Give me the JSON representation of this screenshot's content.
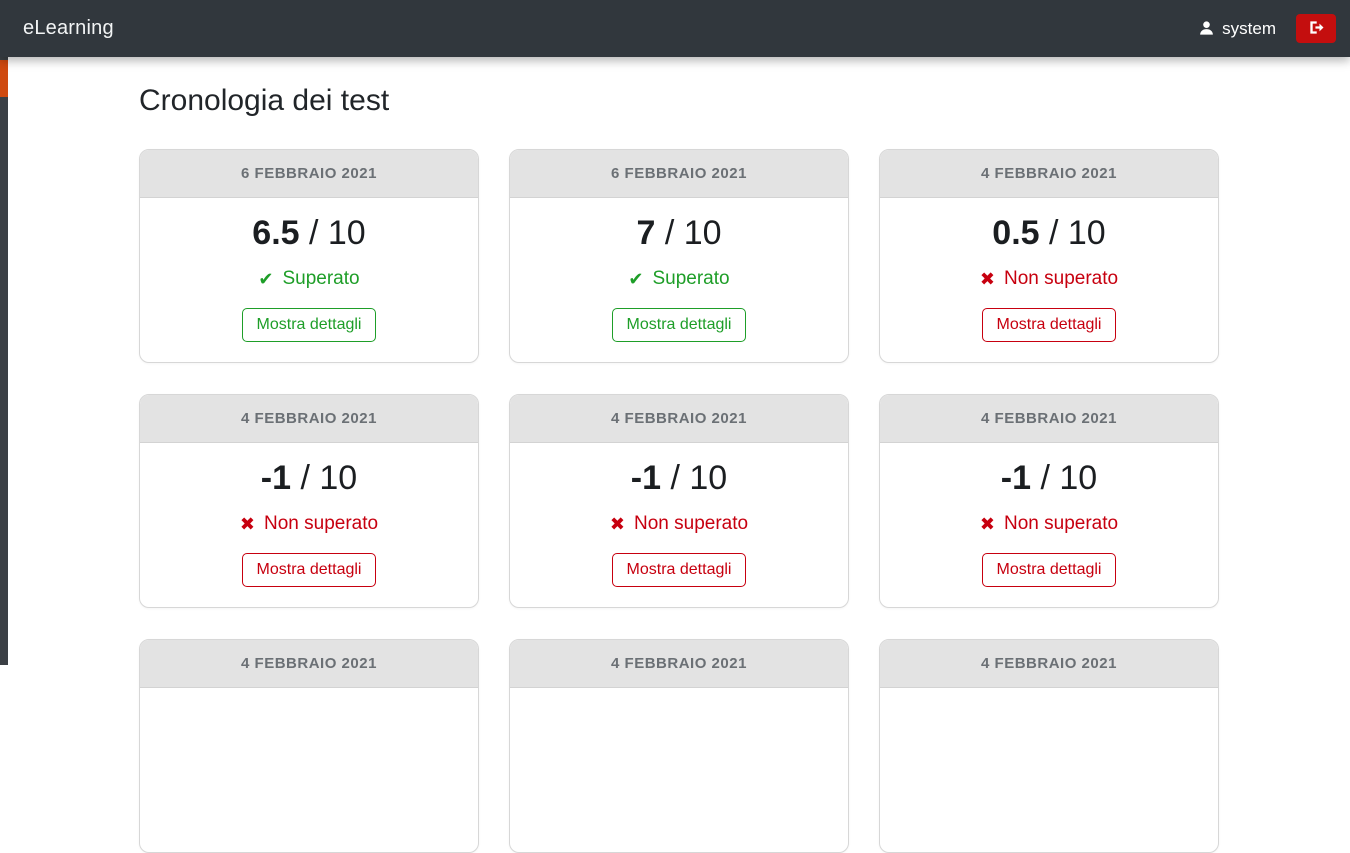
{
  "navbar": {
    "brand": "eLearning",
    "user": "system"
  },
  "page": {
    "title": "Cronologia dei test"
  },
  "labels": {
    "details": "Mostra dettagli",
    "passed": "Superato",
    "failed": "Non superato"
  },
  "icons": {
    "check": "✔",
    "x": "✖"
  },
  "colors": {
    "navbar_bg": "#31373d",
    "sidebar_bg": "#3b4045",
    "sidebar_active": "#cf4a10",
    "logout_bg": "#c40e0e",
    "green": "#1e9e28",
    "red": "#c7000f"
  },
  "cards": [
    {
      "date": "6 FEBBRAIO 2021",
      "score": "6.5",
      "max": "10",
      "passed": true
    },
    {
      "date": "6 FEBBRAIO 2021",
      "score": "7",
      "max": "10",
      "passed": true
    },
    {
      "date": "4 FEBBRAIO 2021",
      "score": "0.5",
      "max": "10",
      "passed": false
    },
    {
      "date": "4 FEBBRAIO 2021",
      "score": "-1",
      "max": "10",
      "passed": false
    },
    {
      "date": "4 FEBBRAIO 2021",
      "score": "-1",
      "max": "10",
      "passed": false
    },
    {
      "date": "4 FEBBRAIO 2021",
      "score": "-1",
      "max": "10",
      "passed": false
    },
    {
      "date": "4 FEBBRAIO 2021"
    },
    {
      "date": "4 FEBBRAIO 2021"
    },
    {
      "date": "4 FEBBRAIO 2021"
    }
  ]
}
